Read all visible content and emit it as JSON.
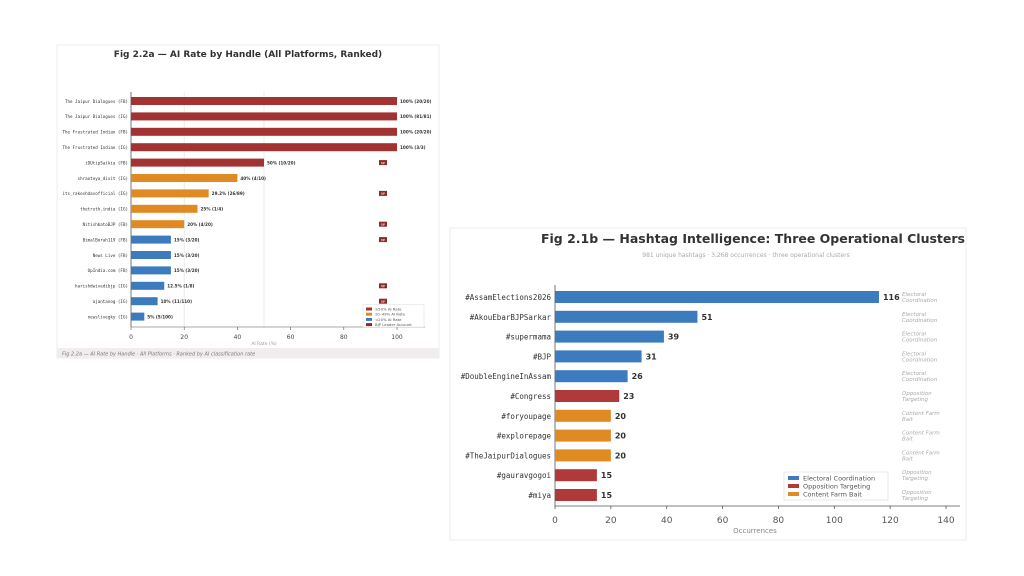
{
  "chart_data": [
    {
      "type": "bar",
      "orientation": "horizontal",
      "title": "Fig 2.2a — AI Rate by Handle (All Platforms, Ranked)",
      "xlabel": "AI Rate (%)",
      "ylabel": "",
      "xlim": [
        0,
        110
      ],
      "xticks": [
        "0",
        "20",
        "40",
        "60",
        "80",
        "100"
      ],
      "caption": "Fig 2.2a — AI Rate by Handle · All Platforms · Ranked by AI classification rate",
      "categories": [
        "The Jaipur Dialogues (FB)",
        "The Jaipur Dialogues (IG)",
        "The Frustrated Indian (FB)",
        "The Frustrated Indian (IG)",
        "iDUtipSaikia (FB)",
        "shraoteya_dixit (IG)",
        "its_rakeshdasofficial (IG)",
        "thetruth.india (IG)",
        "NitishbatoBJP (FB)",
        "BimalBorah119 (FB)",
        "News Live (FB)",
        "OpIndia.com (FB)",
        "harishdwivedibjp (IG)",
        "ajantanog (IG)",
        "newslivegky (IG)"
      ],
      "values": [
        100,
        100,
        100,
        100,
        50,
        40,
        29.2,
        25,
        20,
        15,
        15,
        15,
        12.5,
        10,
        5
      ],
      "value_labels": [
        "100% (20/20)",
        "100% (81/81)",
        "100% (20/20)",
        "100% (3/3)",
        "50% (10/20)",
        "40% (4/10)",
        "29.2% (26/89)",
        "25% (1/4)",
        "20% (4/20)",
        "15% (3/20)",
        "15% (3/20)",
        "15% (3/20)",
        "12.5% (1/8)",
        "10% (11/110)",
        "5% (5/100)"
      ],
      "groups": [
        "high",
        "high",
        "high",
        "high",
        "high",
        "mid",
        "mid",
        "mid",
        "mid",
        "low",
        "low",
        "low",
        "low",
        "low",
        "low"
      ],
      "bjp_leader": [
        false,
        false,
        false,
        false,
        true,
        false,
        true,
        false,
        true,
        true,
        false,
        false,
        true,
        true,
        false
      ],
      "badge_label": "BJP",
      "legend_position": "lower-right",
      "legend": [
        {
          "key": "high",
          "label": "≥50% AI Rate",
          "color": "#a33232"
        },
        {
          "key": "mid",
          "label": "20–49% AI Rate",
          "color": "#e08a23"
        },
        {
          "key": "low",
          "label": "<20% AI Rate",
          "color": "#3d7bbf"
        },
        {
          "key": "bjp",
          "label": "BJP Leader Account",
          "color": "#8b2a2a"
        }
      ],
      "grid": "vertical at 20 and 50"
    },
    {
      "type": "bar",
      "orientation": "horizontal",
      "title": "Fig 2.1b — Hashtag Intelligence: Three Operational Clusters",
      "subtitle": "981 unique hashtags · 3,268 occurrences · three operational clusters",
      "xlabel": "Occurrences",
      "ylabel": "",
      "xlim": [
        0,
        145
      ],
      "xticks": [
        "0",
        "20",
        "40",
        "60",
        "80",
        "100",
        "120",
        "140"
      ],
      "categories": [
        "#AssamElections2026",
        "#AkouEbarBJPSarkar",
        "#supermama",
        "#BJP",
        "#DoubleEngineInAssam",
        "#Congress",
        "#foryoupage",
        "#explorepage",
        "#TheJaipurDialogues",
        "#gauravgogoi",
        "#miya"
      ],
      "values": [
        116,
        51,
        39,
        31,
        26,
        23,
        20,
        20,
        20,
        15,
        15
      ],
      "clusters": [
        "Electoral Coordination",
        "Electoral Coordination",
        "Electoral Coordination",
        "Electoral Coordination",
        "Electoral Coordination",
        "Opposition Targeting",
        "Content Farm Bait",
        "Content Farm Bait",
        "Content Farm Bait",
        "Opposition Targeting",
        "Opposition Targeting"
      ],
      "legend_position": "lower-right",
      "legend": [
        {
          "label": "Electoral Coordination",
          "color": "#3d7bbf"
        },
        {
          "label": "Opposition Targeting",
          "color": "#b03a3a"
        },
        {
          "label": "Content Farm Bait",
          "color": "#e08a23"
        }
      ]
    }
  ]
}
